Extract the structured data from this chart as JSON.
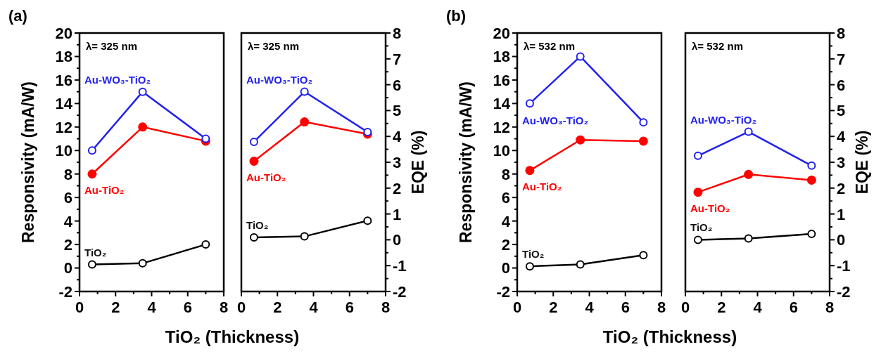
{
  "chart_data": [
    {
      "type": "line",
      "annotations": [
        "(a)",
        "λ= 325 nm"
      ],
      "xlabel": "TiO₂ (Thickness)",
      "ylabel": "Responsivity (mA/W)",
      "xlim": [
        0,
        8
      ],
      "xticks": [
        0,
        {
          "value": 1,
          "label": null
        },
        2,
        {
          "value": 3,
          "label": null
        },
        4,
        {
          "value": 5,
          "label": null
        },
        6,
        {
          "value": 7,
          "label": null
        },
        8
      ],
      "ylim": [
        -2,
        20
      ],
      "yticks": [
        -2,
        {
          "value": -1,
          "label": null
        },
        0,
        {
          "value": 1,
          "label": null
        },
        2,
        {
          "value": 3,
          "label": null
        },
        4,
        {
          "value": 5,
          "label": null
        },
        6,
        {
          "value": 7,
          "label": null
        },
        8,
        {
          "value": 9,
          "label": null
        },
        10,
        {
          "value": 11,
          "label": null
        },
        12,
        {
          "value": 13,
          "label": null
        },
        14,
        {
          "value": 15,
          "label": null
        },
        16,
        {
          "value": 17,
          "label": null
        },
        18,
        {
          "value": 19,
          "label": null
        },
        20
      ],
      "marker": "circle",
      "x": [
        0.7,
        3.5,
        7.0
      ],
      "series": [
        {
          "name": "Au-WO₃-TiO₂",
          "color": "#2020f0",
          "values": [
            10,
            15,
            11
          ]
        },
        {
          "name": "Au-TiO₂",
          "color": "#ff0000",
          "values": [
            8,
            12,
            10.8
          ]
        },
        {
          "name": "TiO₂",
          "color": "#000000",
          "values": [
            0.3,
            0.4,
            2.0
          ]
        }
      ]
    },
    {
      "type": "line",
      "annotations": [
        "λ= 325 nm"
      ],
      "y2label": "EQE (%)",
      "xlim": [
        0,
        8
      ],
      "xticks": [
        0,
        {
          "value": 1,
          "label": null
        },
        2,
        {
          "value": 3,
          "label": null
        },
        4,
        {
          "value": 5,
          "label": null
        },
        6,
        {
          "value": 7,
          "label": null
        },
        8
      ],
      "y2lim": [
        -2,
        8
      ],
      "y2ticks": [
        -2,
        {
          "value": -1.5,
          "label": null
        },
        -1,
        {
          "value": -0.5,
          "label": null
        },
        0,
        {
          "value": 0.5,
          "label": null
        },
        1,
        {
          "value": 1.5,
          "label": null
        },
        2,
        {
          "value": 2.5,
          "label": null
        },
        3,
        {
          "value": 3.5,
          "label": null
        },
        4,
        {
          "value": 4.5,
          "label": null
        },
        5,
        {
          "value": 5.5,
          "label": null
        },
        6,
        {
          "value": 6.5,
          "label": null
        },
        7,
        {
          "value": 7.5,
          "label": null
        },
        8
      ],
      "marker": "circle",
      "x": [
        0.7,
        3.5,
        7.0
      ],
      "series": [
        {
          "name": "Au-WO₃-TiO₂",
          "color": "#2020f0",
          "axis": "y2",
          "values": [
            3.79,
            5.73,
            4.17
          ]
        },
        {
          "name": "Au-TiO₂",
          "color": "#ff0000",
          "axis": "y2",
          "values": [
            3.04,
            4.56,
            4.09
          ]
        },
        {
          "name": "TiO₂",
          "color": "#000000",
          "axis": "y2",
          "values": [
            0.09,
            0.13,
            0.74
          ]
        }
      ]
    },
    {
      "type": "line",
      "annotations": [
        "(b)",
        "λ= 532 nm"
      ],
      "xlabel": "TiO₂ (Thickness)",
      "ylabel": "Responsivity (mA/W)",
      "xlim": [
        0,
        8
      ],
      "xticks": [
        0,
        {
          "value": 1,
          "label": null
        },
        2,
        {
          "value": 3,
          "label": null
        },
        4,
        {
          "value": 5,
          "label": null
        },
        6,
        {
          "value": 7,
          "label": null
        },
        8
      ],
      "ylim": [
        -2,
        20
      ],
      "yticks": [
        -2,
        {
          "value": -1,
          "label": null
        },
        0,
        {
          "value": 1,
          "label": null
        },
        2,
        {
          "value": 3,
          "label": null
        },
        4,
        {
          "value": 5,
          "label": null
        },
        6,
        {
          "value": 7,
          "label": null
        },
        8,
        {
          "value": 9,
          "label": null
        },
        10,
        {
          "value": 11,
          "label": null
        },
        12,
        {
          "value": 13,
          "label": null
        },
        14,
        {
          "value": 15,
          "label": null
        },
        16,
        {
          "value": 17,
          "label": null
        },
        18,
        {
          "value": 19,
          "label": null
        },
        20
      ],
      "marker": "circle",
      "x": [
        0.7,
        3.5,
        7.0
      ],
      "series": [
        {
          "name": "Au-WO₃-TiO₂",
          "color": "#2020f0",
          "values": [
            14.0,
            18.0,
            12.4
          ]
        },
        {
          "name": "Au-TiO₂",
          "color": "#ff0000",
          "values": [
            8.3,
            10.9,
            10.8
          ]
        },
        {
          "name": "TiO₂",
          "color": "#000000",
          "values": [
            0.14,
            0.3,
            1.1
          ]
        }
      ]
    },
    {
      "type": "line",
      "annotations": [
        "λ= 532 nm"
      ],
      "y2label": "EQE (%)",
      "xlim": [
        0,
        8
      ],
      "xticks": [
        0,
        {
          "value": 1,
          "label": null
        },
        2,
        {
          "value": 3,
          "label": null
        },
        4,
        {
          "value": 5,
          "label": null
        },
        6,
        {
          "value": 7,
          "label": null
        },
        8
      ],
      "y2lim": [
        -2,
        8
      ],
      "y2ticks": [
        -2,
        {
          "value": -1.5,
          "label": null
        },
        -1,
        {
          "value": -0.5,
          "label": null
        },
        0,
        {
          "value": 0.5,
          "label": null
        },
        1,
        {
          "value": 1.5,
          "label": null
        },
        2,
        {
          "value": 2.5,
          "label": null
        },
        3,
        {
          "value": 3.5,
          "label": null
        },
        4,
        {
          "value": 4.5,
          "label": null
        },
        5,
        {
          "value": 5.5,
          "label": null
        },
        6,
        {
          "value": 6.5,
          "label": null
        },
        7,
        {
          "value": 7.5,
          "label": null
        },
        8
      ],
      "marker": "circle",
      "x": [
        0.7,
        3.5,
        7.0
      ],
      "series": [
        {
          "name": "Au-WO₃-TiO₂",
          "color": "#2020f0",
          "axis": "y2",
          "values": [
            3.25,
            4.18,
            2.87
          ]
        },
        {
          "name": "Au-TiO₂",
          "color": "#ff0000",
          "axis": "y2",
          "values": [
            1.84,
            2.53,
            2.31
          ]
        },
        {
          "name": "TiO₂",
          "color": "#000000",
          "axis": "y2",
          "values": [
            0.0,
            0.05,
            0.23
          ]
        }
      ]
    }
  ]
}
